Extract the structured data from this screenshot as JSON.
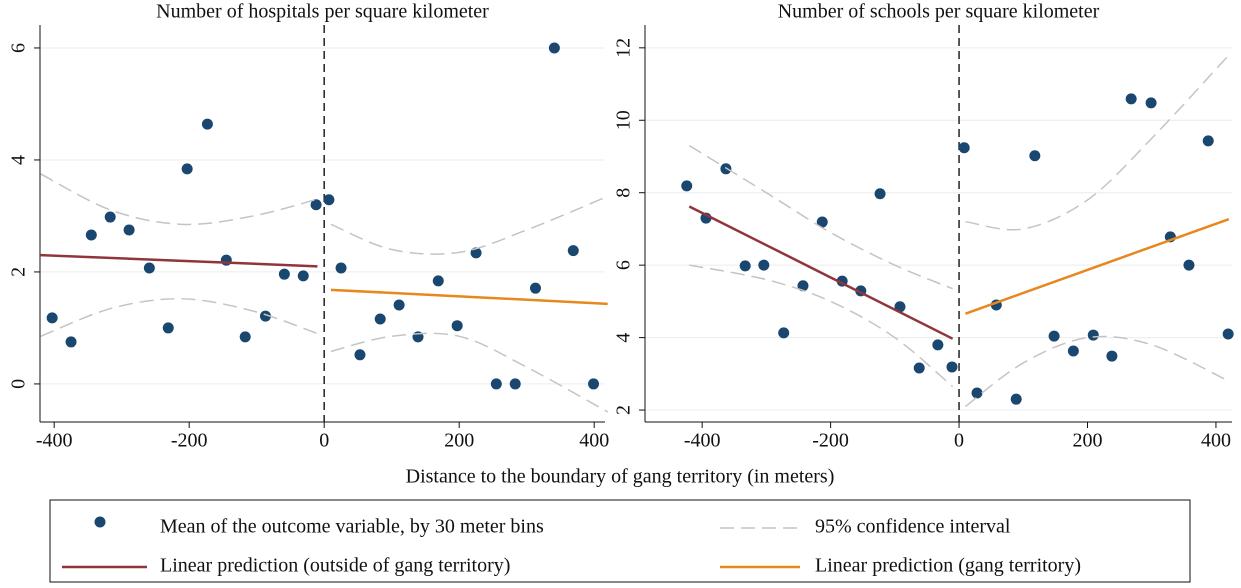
{
  "chart_data": [
    {
      "type": "scatter",
      "title": "Number of hospitals per square kilometer",
      "xlim": [
        -421,
        416
      ],
      "ylim": [
        -0.68,
        6.41
      ],
      "xticks": [
        -400,
        -200,
        0,
        200,
        400
      ],
      "yticks": [
        0,
        2,
        4,
        6
      ],
      "grid": true,
      "vline": 0,
      "series": [
        {
          "name": "Mean of the outcome variable, by 30 meter bins",
          "style": "points",
          "color": "#1a476f",
          "x": [
            -403,
            -375,
            -345,
            -317,
            -289,
            -259,
            -231,
            -203,
            -173,
            -145,
            -117,
            -87,
            -59,
            -31,
            -12,
            7,
            25,
            53,
            83,
            111,
            139,
            169,
            197,
            225,
            255,
            283,
            313,
            341,
            369,
            399
          ],
          "values": [
            1.18,
            0.75,
            2.66,
            2.98,
            2.75,
            2.07,
            1.0,
            3.84,
            4.64,
            2.21,
            0.84,
            1.21,
            1.96,
            1.93,
            3.2,
            3.29,
            2.07,
            0.52,
            1.16,
            1.41,
            0.84,
            1.84,
            1.04,
            2.34,
            0,
            0,
            1.71,
            6,
            2.38,
            0
          ]
        },
        {
          "name": "Linear prediction (outside of gang territory)",
          "style": "solid",
          "color": "#90353b",
          "x": [
            -420,
            -10
          ],
          "values": [
            2.3,
            2.1
          ]
        },
        {
          "name": "Linear prediction (gang territory)",
          "style": "solid",
          "color": "#e8881c",
          "x": [
            10,
            420
          ],
          "values": [
            1.68,
            1.43
          ]
        },
        {
          "name": "95% confidence interval",
          "style": "dashed",
          "color": "#c4c4c4",
          "x": [
            -420,
            -315,
            -210,
            -105,
            -10
          ],
          "values": [
            3.75,
            3.1,
            2.85,
            3.0,
            3.3
          ]
        },
        {
          "style": "dashed",
          "color": "#c4c4c4",
          "x": [
            -420,
            -315,
            -210,
            -105,
            -10
          ],
          "values": [
            0.85,
            1.35,
            1.52,
            1.3,
            0.9
          ]
        },
        {
          "style": "dashed",
          "color": "#c4c4c4",
          "x": [
            10,
            100,
            200,
            300,
            420
          ],
          "values": [
            2.85,
            2.4,
            2.35,
            2.75,
            3.35
          ]
        },
        {
          "style": "dashed",
          "color": "#c4c4c4",
          "x": [
            10,
            100,
            200,
            300,
            420
          ],
          "values": [
            0.58,
            0.85,
            0.85,
            0.3,
            -0.5
          ]
        }
      ]
    },
    {
      "type": "scatter",
      "title": "Number of schools per square kilometer",
      "xlim": [
        -489,
        425
      ],
      "ylim": [
        1.67,
        12.63
      ],
      "xticks": [
        -400,
        -200,
        0,
        200,
        400
      ],
      "yticks": [
        2,
        4,
        6,
        8,
        10,
        12
      ],
      "grid": true,
      "vline": 0,
      "series": [
        {
          "style": "points",
          "color": "#1a476f",
          "x": [
            -424,
            -394,
            -363,
            -333,
            -304,
            -273,
            -243,
            -213,
            -182,
            -153,
            -123,
            -92,
            -62,
            -33,
            -11,
            8,
            28,
            58,
            89,
            118,
            148,
            178,
            209,
            238,
            268,
            299,
            329,
            358,
            388,
            419
          ],
          "values": [
            8.19,
            7.3,
            8.66,
            5.98,
            6.0,
            4.13,
            5.43,
            7.19,
            5.56,
            5.29,
            7.97,
            4.85,
            3.16,
            3.8,
            3.19,
            9.24,
            2.47,
            4.9,
            2.3,
            9.02,
            4.04,
            3.63,
            4.07,
            3.49,
            10.59,
            10.48,
            6.78,
            6.0,
            9.43,
            4.1
          ]
        },
        {
          "style": "solid",
          "color": "#90353b",
          "x": [
            -420,
            -10
          ],
          "values": [
            7.62,
            3.97
          ]
        },
        {
          "style": "solid",
          "color": "#e8881c",
          "x": [
            10,
            420
          ],
          "values": [
            4.66,
            7.27
          ]
        },
        {
          "style": "dashed",
          "color": "#c4c4c4",
          "x": [
            -420,
            -300,
            -200,
            -100,
            -10
          ],
          "values": [
            9.3,
            8.0,
            6.9,
            6.0,
            5.35
          ]
        },
        {
          "style": "dashed",
          "color": "#c4c4c4",
          "x": [
            -420,
            -300,
            -200,
            -100,
            -10
          ],
          "values": [
            6.0,
            5.6,
            5.0,
            4.0,
            2.65
          ]
        },
        {
          "style": "dashed",
          "color": "#c4c4c4",
          "x": [
            10,
            100,
            200,
            300,
            420
          ],
          "values": [
            7.2,
            7.0,
            7.8,
            9.5,
            11.8
          ]
        },
        {
          "style": "dashed",
          "color": "#c4c4c4",
          "x": [
            10,
            100,
            200,
            300,
            420
          ],
          "values": [
            2.1,
            3.3,
            4.0,
            3.8,
            2.8
          ]
        }
      ]
    }
  ],
  "xlabel": "Distance to the boundary of gang territory (in meters)"
}
